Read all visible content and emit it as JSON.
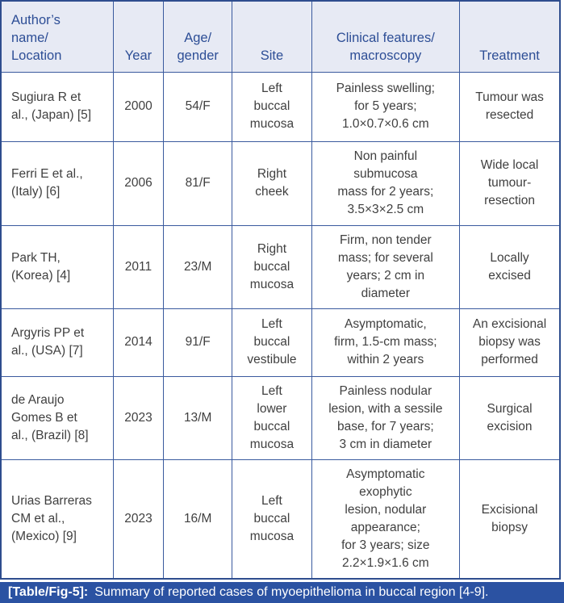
{
  "table": {
    "headers": [
      "Author’s\nname/\nLocation",
      "Year",
      "Age/\ngender",
      "Site",
      "Clinical features/\nmacroscopy",
      "Treatment"
    ],
    "rows": [
      {
        "cells": [
          "Sugiura R et\nal., (Japan) [5]",
          "2000",
          "54/F",
          "Left\nbuccal\nmucosa",
          "Painless swelling;\nfor 5 years;\n1.0×0.7×0.6 cm",
          "Tumour was\nresected"
        ]
      },
      {
        "cells": [
          "Ferri E et al.,\n(Italy) [6]",
          "2006",
          "81/F",
          "Right\ncheek",
          "Non painful\nsubmucosa\nmass for 2 years;\n3.5×3×2.5 cm",
          "Wide local\ntumour-\nresection"
        ]
      },
      {
        "cells": [
          "Park TH,\n(Korea) [4]",
          "2011",
          "23/M",
          "Right\nbuccal\nmucosa",
          "Firm, non tender\nmass; for several\nyears; 2 cm in\ndiameter",
          "Locally\nexcised"
        ]
      },
      {
        "cells": [
          "Argyris PP et\nal., (USA) [7]",
          "2014",
          "91/F",
          "Left\nbuccal\nvestibule",
          "Asymptomatic,\nfirm, 1.5-cm mass;\nwithin 2 years",
          "An excisional\nbiopsy was\nperformed"
        ]
      },
      {
        "cells": [
          "de Araujo\nGomes B et\nal., (Brazil) [8]",
          "2023",
          "13/M",
          "Left\nlower\nbuccal\nmucosa",
          "Painless nodular\nlesion, with a sessile\nbase, for 7 years;\n3 cm in diameter",
          "Surgical\nexcision"
        ]
      },
      {
        "cells": [
          "Urias Barreras\nCM et al.,\n(Mexico) [9]",
          "2023",
          "16/M",
          "Left\nbuccal\nmucosa",
          "Asymptomatic\nexophytic\nlesion, nodular\nappearance;\nfor 3 years; size\n2.2×1.9×1.6 cm",
          "Excisional\nbiopsy"
        ]
      }
    ]
  },
  "caption": {
    "label": "[Table/Fig-5]:",
    "text": "Summary of reported cases of myoepithelioma in buccal region [4-9]."
  },
  "colors": {
    "caption_bg": "#2b52a2",
    "header_bg": "#e7eaf4",
    "header_text": "#2d4e96",
    "border": "#3a5a9e",
    "body_text": "#404040"
  }
}
